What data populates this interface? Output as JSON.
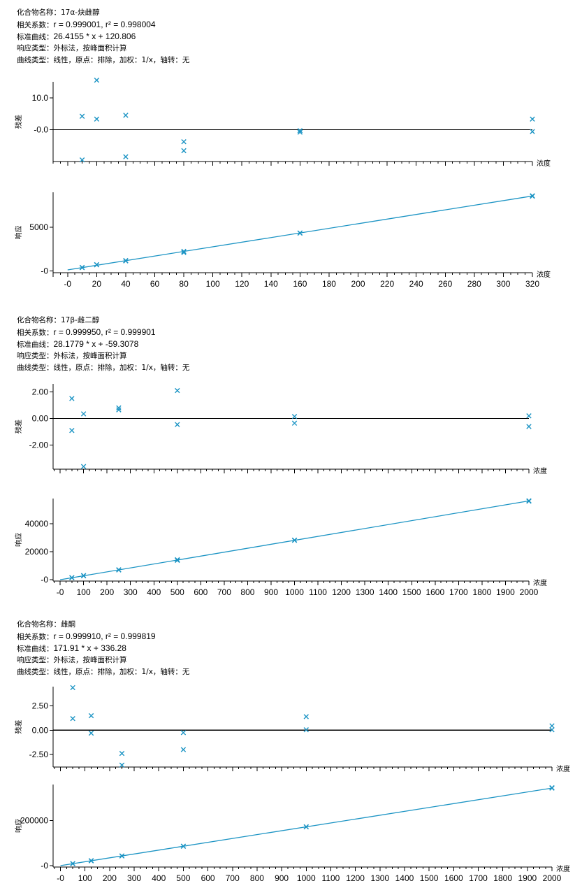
{
  "compounds": [
    {
      "info": {
        "name_key": "化合物名称：",
        "name": "17α-炔雌醇",
        "corr_key": "相关系数：",
        "corr": "r = 0.999001, r² = 0.998004",
        "curve_key": "标准曲线：",
        "curve": "26.4155 * x + 120.806",
        "resp_key": "响应类型：",
        "resp": "外标法，按峰面积计算",
        "type_key": "曲线类型：",
        "type": "线性，原点：排除，加权：1/x，轴转：无"
      }
    },
    {
      "info": {
        "name_key": "化合物名称：",
        "name": "17β-雌二醇",
        "corr_key": "相关系数：",
        "corr": "r = 0.999950, r² = 0.999901",
        "curve_key": "标准曲线：",
        "curve": "28.1779 * x + -59.3078",
        "resp_key": "响应类型：",
        "resp": "外标法，按峰面积计算",
        "type_key": "曲线类型：",
        "type": "线性，原点：排除，加权：1/x，轴转：无"
      }
    },
    {
      "info": {
        "name_key": "化合物名称：",
        "name": "雌酮",
        "corr_key": "相关系数：",
        "corr": "r = 0.999910, r² = 0.999819",
        "curve_key": "标准曲线：",
        "curve": "171.91 * x + 336.28",
        "resp_key": "响应类型：",
        "resp": "外标法，按峰面积计算",
        "type_key": "曲线类型：",
        "type": "线性，原点：排除，加权：1/x，轴转：无"
      }
    }
  ],
  "chart_data": [
    {
      "type": "scatter",
      "role": "residual",
      "ylabel": "残差",
      "xlabel": "浓度",
      "xlim": [
        -10,
        320
      ],
      "ylim": [
        -10,
        15
      ],
      "ytick_values": [
        -0.0,
        10.0
      ],
      "ytick_labels": [
        "-0.0",
        "10.0"
      ],
      "zero_line": true,
      "points": [
        [
          10,
          4.2
        ],
        [
          10,
          -9.5
        ],
        [
          20,
          15.5
        ],
        [
          20,
          3.3
        ],
        [
          40,
          4.5
        ],
        [
          40,
          -8.5
        ],
        [
          80,
          -3.8
        ],
        [
          80,
          -6.6
        ],
        [
          160,
          -0.3
        ],
        [
          160,
          -0.8
        ],
        [
          320,
          3.3
        ],
        [
          320,
          -0.6
        ]
      ]
    },
    {
      "type": "scatter",
      "role": "calibration",
      "ylabel": "响应",
      "xlabel": "浓度",
      "xlim": [
        -10,
        320
      ],
      "ylim": [
        -200,
        9000
      ],
      "ytick_values": [
        0,
        5000
      ],
      "ytick_labels": [
        "-0",
        "5000"
      ],
      "xtick_values": [
        -10,
        0,
        20,
        40,
        60,
        80,
        100,
        120,
        140,
        160,
        180,
        200,
        220,
        240,
        260,
        280,
        300,
        320
      ],
      "xtick_labels": [
        "",
        "-0",
        "20",
        "40",
        "60",
        "80",
        "100",
        "120",
        "140",
        "160",
        "180",
        "200",
        "220",
        "240",
        "260",
        "280",
        "300",
        "320"
      ],
      "fit": {
        "slope": 26.4155,
        "intercept": 120.806
      },
      "points": [
        [
          10,
          380
        ],
        [
          10,
          400
        ],
        [
          20,
          700
        ],
        [
          20,
          720
        ],
        [
          40,
          1150
        ],
        [
          40,
          1190
        ],
        [
          80,
          2110
        ],
        [
          80,
          2240
        ],
        [
          160,
          4330
        ],
        [
          160,
          4340
        ],
        [
          320,
          8600
        ],
        [
          320,
          8550
        ]
      ]
    },
    {
      "type": "scatter",
      "role": "residual",
      "ylabel": "残差",
      "xlabel": "浓度",
      "xlim": [
        -30,
        2000
      ],
      "ylim": [
        -3.8,
        2.6
      ],
      "ytick_values": [
        2.0,
        0.0,
        -2.0
      ],
      "ytick_labels": [
        "2.00",
        "0.00",
        "-2.00"
      ],
      "zero_line": true,
      "points": [
        [
          50,
          1.5
        ],
        [
          50,
          -0.9
        ],
        [
          100,
          0.35
        ],
        [
          100,
          -3.6
        ],
        [
          250,
          0.8
        ],
        [
          250,
          0.65
        ],
        [
          500,
          2.1
        ],
        [
          500,
          -0.45
        ],
        [
          1000,
          0.15
        ],
        [
          1000,
          -0.35
        ],
        [
          2000,
          0.2
        ],
        [
          2000,
          -0.6
        ]
      ]
    },
    {
      "type": "scatter",
      "role": "calibration",
      "ylabel": "响应",
      "xlabel": "浓度",
      "xlim": [
        -30,
        2000
      ],
      "ylim": [
        -1000,
        58000
      ],
      "ytick_values": [
        0,
        20000,
        40000
      ],
      "ytick_labels": [
        "-0",
        "20000",
        "40000"
      ],
      "xtick_values": [
        0,
        100,
        200,
        300,
        400,
        500,
        600,
        700,
        800,
        900,
        1000,
        1100,
        1200,
        1300,
        1400,
        1500,
        1600,
        1700,
        1800,
        1900,
        2000
      ],
      "xtick_labels": [
        "-0",
        "100",
        "200",
        "300",
        "400",
        "500",
        "600",
        "700",
        "800",
        "900",
        "1000",
        "1100",
        "1200",
        "1300",
        "1400",
        "1500",
        "1600",
        "1700",
        "1800",
        "1900",
        "2000"
      ],
      "fit": {
        "slope": 28.1779,
        "intercept": -59.3078
      },
      "points": [
        [
          50,
          1350
        ],
        [
          50,
          1450
        ],
        [
          100,
          2750
        ],
        [
          100,
          2950
        ],
        [
          250,
          6900
        ],
        [
          250,
          7100
        ],
        [
          500,
          13800
        ],
        [
          500,
          14300
        ],
        [
          1000,
          28100
        ],
        [
          1000,
          28300
        ],
        [
          2000,
          56400
        ],
        [
          2000,
          56100
        ]
      ]
    },
    {
      "type": "scatter",
      "role": "residual",
      "ylabel": "残差",
      "xlabel": "浓度",
      "xlim": [
        -30,
        2000
      ],
      "ylim": [
        -3.8,
        4.5
      ],
      "ytick_values": [
        2.5,
        0.0,
        -2.5
      ],
      "ytick_labels": [
        "2.50",
        "0.00",
        "-2.50"
      ],
      "zero_line": true,
      "points": [
        [
          50,
          4.4
        ],
        [
          50,
          1.2
        ],
        [
          125,
          1.5
        ],
        [
          125,
          -0.3
        ],
        [
          250,
          -2.4
        ],
        [
          250,
          -3.6
        ],
        [
          500,
          -0.25
        ],
        [
          500,
          -2.0
        ],
        [
          1000,
          1.4
        ],
        [
          1000,
          0.05
        ],
        [
          2000,
          0.45
        ],
        [
          2000,
          0.05
        ]
      ]
    },
    {
      "type": "scatter",
      "role": "calibration",
      "ylabel": "响应",
      "xlabel": "浓度",
      "xlim": [
        -30,
        2000
      ],
      "ylim": [
        -6000,
        360000
      ],
      "ytick_values": [
        0,
        200000
      ],
      "ytick_labels": [
        "-0",
        "200000"
      ],
      "xtick_values": [
        0,
        100,
        200,
        300,
        400,
        500,
        600,
        700,
        800,
        900,
        1000,
        1100,
        1200,
        1300,
        1400,
        1500,
        1600,
        1700,
        1800,
        1900,
        2000
      ],
      "xtick_labels": [
        "-0",
        "100",
        "200",
        "300",
        "400",
        "500",
        "600",
        "700",
        "800",
        "900",
        "1000",
        "1100",
        "1200",
        "1300",
        "1400",
        "1500",
        "1600",
        "1700",
        "1800",
        "1900",
        "2000"
      ],
      "fit": {
        "slope": 171.91,
        "intercept": 336.28
      },
      "points": [
        [
          50,
          9000
        ],
        [
          50,
          9200
        ],
        [
          125,
          21500
        ],
        [
          125,
          22300
        ],
        [
          250,
          43000
        ],
        [
          250,
          43500
        ],
        [
          500,
          86000
        ],
        [
          500,
          86500
        ],
        [
          1000,
          172000
        ],
        [
          1000,
          172500
        ],
        [
          2000,
          346000
        ],
        [
          2000,
          344000
        ]
      ]
    }
  ]
}
